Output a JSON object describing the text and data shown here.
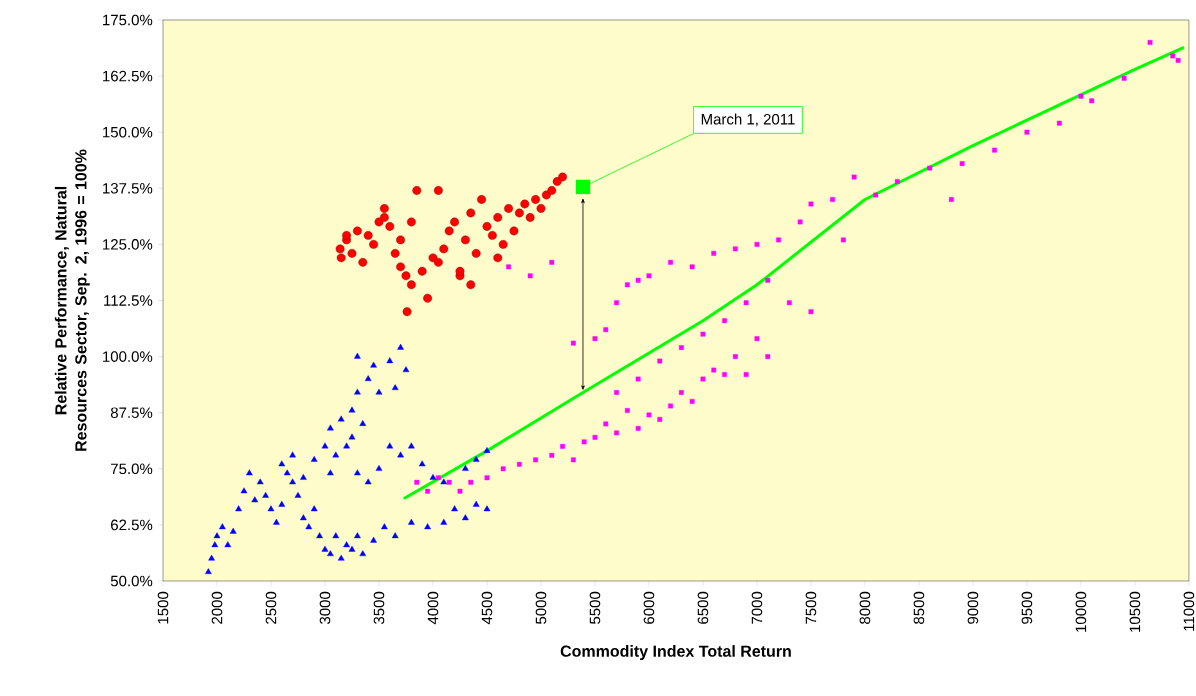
{
  "chart_data": {
    "type": "scatter",
    "xlabel": "Commodity Index Total Return",
    "ylabel": "Relative Performance, Natural Resources Sector, Sep. 2, 1996 = 100%",
    "xlim": [
      1500,
      11000
    ],
    "ylim": [
      50,
      175
    ],
    "xticks": [
      1500,
      2000,
      2500,
      3000,
      3500,
      4000,
      4500,
      5000,
      5500,
      6000,
      6500,
      7000,
      7500,
      8000,
      8500,
      9000,
      9500,
      10000,
      10500,
      11000
    ],
    "yticks": [
      {
        "value": 50,
        "label": "50.0%"
      },
      {
        "value": 62.5,
        "label": "62.5%"
      },
      {
        "value": 75,
        "label": "75.0%"
      },
      {
        "value": 87.5,
        "label": "87.5%"
      },
      {
        "value": 100,
        "label": "100.0%"
      },
      {
        "value": 112.5,
        "label": "112.5%"
      },
      {
        "value": 125,
        "label": "125.0%"
      },
      {
        "value": 137.5,
        "label": "137.5%"
      },
      {
        "value": 150,
        "label": "150.0%"
      },
      {
        "value": 162.5,
        "label": "162.5%"
      },
      {
        "value": 175,
        "label": "175.0%"
      }
    ],
    "series": [
      {
        "marker": "triangle",
        "color": "#0000ff",
        "x": [
          1920,
          1950,
          1980,
          2000,
          2050,
          2100,
          2150,
          2200,
          2250,
          2300,
          2350,
          2400,
          2450,
          2500,
          2550,
          2600,
          2650,
          2700,
          2750,
          2800,
          2850,
          2900,
          2950,
          3000,
          3050,
          3100,
          3150,
          3200,
          3250,
          3300,
          3350,
          3450,
          3550,
          3650,
          3800,
          3950,
          4100,
          4200,
          4300,
          4400,
          4500,
          2600,
          2700,
          2800,
          2900,
          3000,
          3050,
          3100,
          3200,
          3300,
          3400,
          3500,
          3600,
          3700,
          3800,
          3900,
          4000,
          4100,
          4300,
          4400,
          4500,
          3050,
          3150,
          3250,
          3300,
          3400,
          3300,
          3450,
          3600,
          3700,
          3750,
          3500,
          3650,
          3350,
          3250
        ],
        "values": [
          52,
          55,
          58,
          60,
          62,
          58,
          61,
          66,
          70,
          74,
          68,
          72,
          69,
          66,
          63,
          67,
          74,
          72,
          69,
          64,
          62,
          66,
          60,
          57,
          56,
          60,
          55,
          58,
          57,
          60,
          56,
          59,
          62,
          60,
          63,
          62,
          63,
          66,
          64,
          67,
          66,
          76,
          78,
          73,
          77,
          80,
          74,
          78,
          80,
          74,
          72,
          75,
          80,
          78,
          80,
          76,
          73,
          72,
          75,
          77,
          79,
          84,
          86,
          88,
          92,
          95,
          100,
          98,
          99,
          102,
          97,
          92,
          93,
          85,
          82
        ]
      },
      {
        "marker": "circle",
        "color": "#ff0000",
        "x": [
          3140,
          3150,
          3200,
          3250,
          3300,
          3350,
          3400,
          3450,
          3500,
          3550,
          3600,
          3650,
          3700,
          3750,
          3760,
          3800,
          3900,
          3950,
          4000,
          4050,
          4100,
          4150,
          4200,
          4250,
          4300,
          4350,
          4400,
          4450,
          4500,
          4550,
          4600,
          4650,
          4700,
          4750,
          4800,
          4850,
          4900,
          4950,
          5000,
          5050,
          5100,
          5150,
          5200,
          3850,
          3550,
          4050,
          4250,
          3700,
          3200,
          3800,
          4600,
          4350
        ],
        "values": [
          124,
          122,
          126,
          123,
          128,
          121,
          127,
          125,
          130,
          131,
          129,
          123,
          126,
          118,
          110,
          116,
          119,
          113,
          122,
          121,
          124,
          128,
          130,
          118,
          126,
          132,
          123,
          135,
          129,
          127,
          131,
          125,
          133,
          128,
          132,
          134,
          131,
          135,
          133,
          136,
          137,
          139,
          140,
          137,
          133,
          137,
          119,
          120,
          127,
          130,
          122,
          116
        ]
      },
      {
        "marker": "square",
        "color": "#ff00ff",
        "x": [
          3850,
          3950,
          4050,
          4150,
          4250,
          4350,
          4500,
          4650,
          4800,
          4950,
          5100,
          5200,
          5300,
          5400,
          5500,
          5600,
          5700,
          5800,
          5900,
          6000,
          6100,
          6200,
          6300,
          6400,
          6500,
          6600,
          6700,
          6800,
          6900,
          7000,
          7100,
          5700,
          5900,
          6100,
          6300,
          6500,
          6700,
          6900,
          7100,
          7300,
          7500,
          4700,
          4900,
          5100,
          5300,
          5500,
          5600,
          5700,
          5800,
          5900,
          6000,
          6200,
          6400,
          6600,
          6800,
          7000,
          7200,
          7400,
          7500,
          7700,
          7800,
          7900,
          8100,
          8300,
          8600,
          8800,
          8900,
          9200,
          9500,
          9800,
          10000,
          10100,
          10400,
          10640,
          10850,
          10900
        ],
        "values": [
          72,
          70,
          73,
          72,
          70,
          72,
          73,
          75,
          76,
          77,
          78,
          80,
          77,
          81,
          82,
          85,
          83,
          88,
          84,
          87,
          86,
          89,
          92,
          90,
          95,
          97,
          96,
          100,
          96,
          104,
          100,
          92,
          95,
          99,
          102,
          105,
          108,
          112,
          117,
          112,
          110,
          120,
          118,
          121,
          103,
          104,
          106,
          112,
          116,
          117,
          118,
          121,
          120,
          123,
          124,
          125,
          126,
          130,
          134,
          135,
          126,
          140,
          136,
          139,
          142,
          135,
          143,
          146,
          150,
          152,
          158,
          157,
          162,
          170,
          167,
          166
        ]
      },
      {
        "type": "line",
        "marker": "none",
        "line_style": "solid",
        "color": "#00ff00",
        "x": [
          3740,
          4500,
          5389,
          6500,
          7000,
          8000,
          9000,
          9500,
          10500,
          10944
        ],
        "values": [
          68.5,
          79,
          92,
          108,
          116,
          135,
          147,
          152.7,
          164,
          168.8
        ]
      },
      {
        "marker": "square",
        "color": "#00ff00",
        "x": [
          5389
        ],
        "values": [
          137.8
        ]
      }
    ],
    "annotations": [
      {
        "text": "March 1, 2011",
        "x": 5389,
        "y": 137.8
      }
    ]
  }
}
